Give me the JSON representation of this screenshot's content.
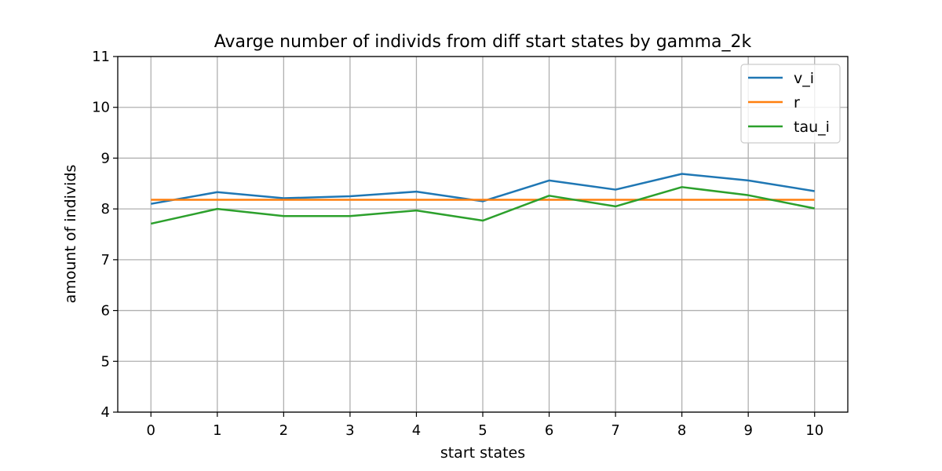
{
  "chart_data": {
    "type": "line",
    "title": "Avarge number of individs from diff start states by gamma_2k",
    "xlabel": "start states",
    "ylabel": "amount of individs",
    "x": [
      0,
      1,
      2,
      3,
      4,
      5,
      6,
      7,
      8,
      9,
      10
    ],
    "xticks": [
      "0",
      "1",
      "2",
      "3",
      "4",
      "5",
      "6",
      "7",
      "8",
      "9",
      "10"
    ],
    "yticks": [
      "4",
      "5",
      "6",
      "7",
      "8",
      "9",
      "10",
      "11"
    ],
    "xlim": [
      -0.5,
      10.5
    ],
    "ylim": [
      4,
      11
    ],
    "grid": true,
    "legend_position": "top-right",
    "series": [
      {
        "name": "v_i",
        "color": "#1f77b4",
        "values": [
          8.1,
          8.33,
          8.21,
          8.25,
          8.34,
          8.15,
          8.56,
          8.38,
          8.69,
          8.56,
          8.35
        ]
      },
      {
        "name": "r",
        "color": "#ff7f0e",
        "values": [
          8.18,
          8.18,
          8.18,
          8.18,
          8.18,
          8.18,
          8.18,
          8.18,
          8.18,
          8.18,
          8.18
        ]
      },
      {
        "name": "tau_i",
        "color": "#2ca02c",
        "values": [
          7.71,
          8.0,
          7.86,
          7.86,
          7.97,
          7.77,
          8.26,
          8.05,
          8.43,
          8.27,
          8.01
        ]
      }
    ]
  }
}
